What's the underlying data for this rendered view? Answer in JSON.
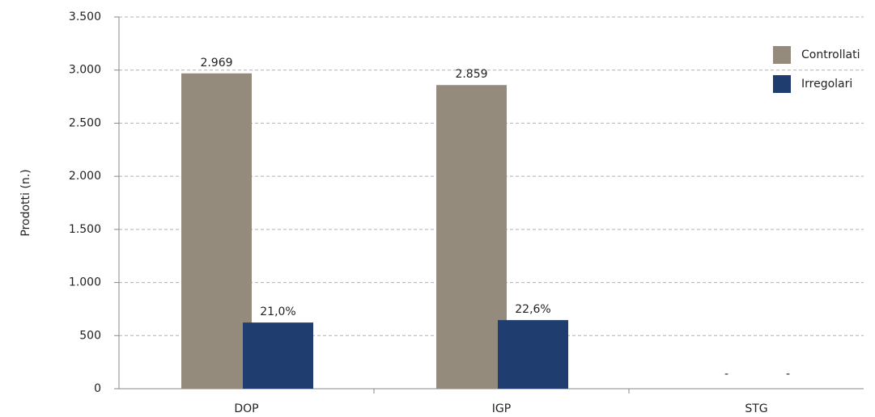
{
  "chart_data": {
    "type": "bar",
    "y_label": "Prodotti (n.)",
    "categories": [
      "DOP",
      "IGP",
      "STG"
    ],
    "series": [
      {
        "name": "Controllati",
        "color": "#958b7c",
        "values": [
          2969,
          2859,
          null
        ],
        "value_labels": [
          "2.969",
          "2.859",
          "-"
        ]
      },
      {
        "name": "Irregolari",
        "color": "#1f3d6e",
        "values": [
          623,
          646,
          null
        ],
        "shares": [
          21.0,
          22.6,
          null
        ],
        "share_labels": [
          "21,0%",
          "22,6%",
          "-"
        ]
      }
    ],
    "ylim": [
      0,
      3500
    ],
    "yticks": [
      0,
      500,
      {
        "value": 1000,
        "label": "1.000"
      },
      {
        "value": 1500,
        "label": "1.500"
      },
      {
        "value": 2000,
        "label": "2.000"
      },
      {
        "value": 2500,
        "label": "2.500"
      },
      {
        "value": 3000,
        "label": "3.000"
      },
      {
        "value": 3500,
        "label": "3.500"
      }
    ],
    "grid": true,
    "legend": "top-right"
  }
}
